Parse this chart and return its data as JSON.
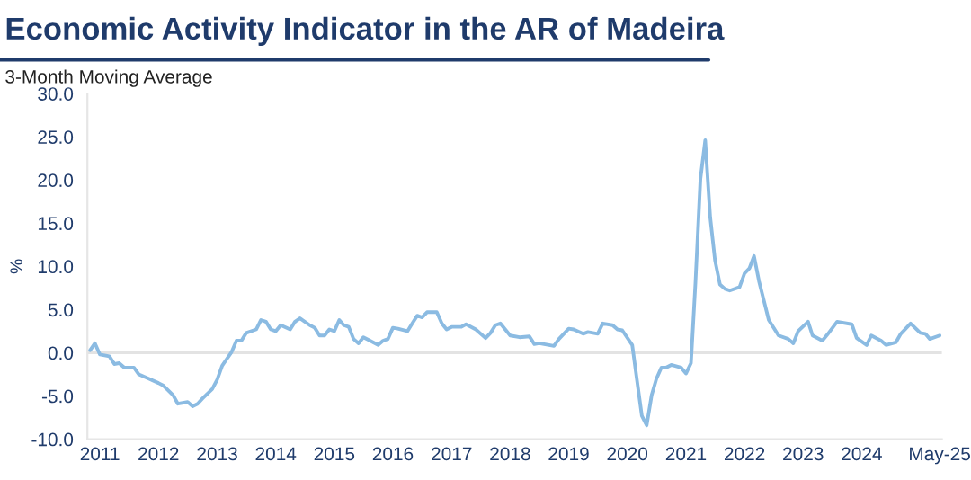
{
  "chart_data": {
    "type": "line",
    "title": "Economic Activity Indicator in the AR of Madeira",
    "subtitle": "3-Month Moving Average",
    "ylabel": "%",
    "x": [
      "2010-11",
      "2010-12",
      "2011-01",
      "2011-03",
      "2011-04",
      "2011-05",
      "2011-06",
      "2011-08",
      "2011-09",
      "2011-11",
      "2012-01",
      "2012-02",
      "2012-04",
      "2012-05",
      "2012-07",
      "2012-08",
      "2012-09",
      "2012-10",
      "2012-12",
      "2013-01",
      "2013-02",
      "2013-04",
      "2013-05",
      "2013-06",
      "2013-07",
      "2013-09",
      "2013-10",
      "2013-11",
      "2013-12",
      "2014-01",
      "2014-02",
      "2014-04",
      "2014-05",
      "2014-06",
      "2014-08",
      "2014-09",
      "2014-10",
      "2014-11",
      "2014-12",
      "2015-01",
      "2015-02",
      "2015-03",
      "2015-04",
      "2015-05",
      "2015-06",
      "2015-07",
      "2015-08",
      "2015-10",
      "2015-11",
      "2015-12",
      "2016-01",
      "2016-02",
      "2016-04",
      "2016-05",
      "2016-06",
      "2016-07",
      "2016-08",
      "2016-10",
      "2016-11",
      "2016-12",
      "2017-01",
      "2017-03",
      "2017-04",
      "2017-06",
      "2017-08",
      "2017-09",
      "2017-10",
      "2017-11",
      "2018-01",
      "2018-03",
      "2018-05",
      "2018-06",
      "2018-07",
      "2018-08",
      "2018-10",
      "2018-11",
      "2019-01",
      "2019-02",
      "2019-04",
      "2019-05",
      "2019-07",
      "2019-08",
      "2019-10",
      "2019-11",
      "2019-12",
      "2020-02",
      "2020-03",
      "2020-04",
      "2020-05",
      "2020-06",
      "2020-07",
      "2020-08",
      "2020-09",
      "2020-10",
      "2020-12",
      "2021-01",
      "2021-02",
      "2021-03",
      "2021-04",
      "2021-05",
      "2021-06",
      "2021-07",
      "2021-08",
      "2021-09",
      "2021-10",
      "2021-12",
      "2022-01",
      "2022-02",
      "2022-03",
      "2022-04",
      "2022-06",
      "2022-08",
      "2022-10",
      "2022-11",
      "2022-12",
      "2023-02",
      "2023-03",
      "2023-05",
      "2023-06",
      "2023-08",
      "2023-11",
      "2023-12",
      "2024-02",
      "2024-03",
      "2024-05",
      "2024-06",
      "2024-08",
      "2024-09",
      "2024-11",
      "2025-01",
      "2025-02",
      "2025-03",
      "2025-05"
    ],
    "series": [
      {
        "color": "#8bbbe2",
        "values": [
          0.3,
          1.1,
          -0.2,
          -0.4,
          -1.3,
          -1.2,
          -1.7,
          -1.7,
          -2.5,
          -3.0,
          -3.5,
          -3.8,
          -4.9,
          -5.9,
          -5.7,
          -6.2,
          -5.9,
          -5.3,
          -4.2,
          -3.1,
          -1.5,
          0.1,
          1.4,
          1.4,
          2.3,
          2.7,
          3.8,
          3.6,
          2.7,
          2.5,
          3.2,
          2.7,
          3.6,
          4.0,
          3.2,
          2.9,
          2.0,
          2.0,
          2.7,
          2.5,
          3.8,
          3.2,
          3.0,
          1.6,
          1.1,
          1.8,
          1.5,
          0.9,
          1.4,
          1.6,
          2.9,
          2.8,
          2.5,
          3.4,
          4.3,
          4.1,
          4.7,
          4.7,
          3.4,
          2.7,
          3.0,
          3.0,
          3.3,
          2.7,
          1.7,
          2.3,
          3.2,
          3.4,
          2.0,
          1.8,
          1.9,
          1.0,
          1.1,
          1.0,
          0.8,
          1.6,
          2.8,
          2.7,
          2.2,
          2.4,
          2.2,
          3.4,
          3.2,
          2.7,
          2.6,
          0.9,
          -3.1,
          -7.3,
          -8.4,
          -4.9,
          -3.0,
          -1.7,
          -1.7,
          -1.4,
          -1.7,
          -2.4,
          -1.2,
          8.1,
          20.1,
          24.6,
          15.7,
          10.7,
          7.9,
          7.4,
          7.2,
          7.6,
          9.2,
          9.8,
          11.2,
          8.3,
          3.8,
          2.0,
          1.6,
          1.1,
          2.5,
          3.6,
          2.0,
          1.4,
          2.1,
          3.6,
          3.3,
          1.7,
          0.9,
          2.0,
          1.4,
          0.9,
          1.2,
          2.2,
          3.4,
          2.3,
          2.2,
          1.6,
          2.0
        ]
      }
    ],
    "xlim": [
      "2010-10-15",
      "2025-05-15"
    ],
    "xticks": [
      {
        "value": "2011-01",
        "label": "2011"
      },
      {
        "value": "2012-01",
        "label": "2012"
      },
      {
        "value": "2013-01",
        "label": "2013"
      },
      {
        "value": "2014-01",
        "label": "2014"
      },
      {
        "value": "2015-01",
        "label": "2015"
      },
      {
        "value": "2016-01",
        "label": "2016"
      },
      {
        "value": "2017-01",
        "label": "2017"
      },
      {
        "value": "2018-01",
        "label": "2018"
      },
      {
        "value": "2019-01",
        "label": "2019"
      },
      {
        "value": "2020-01",
        "label": "2020"
      },
      {
        "value": "2021-01",
        "label": "2021"
      },
      {
        "value": "2022-01",
        "label": "2022"
      },
      {
        "value": "2023-01",
        "label": "2023"
      },
      {
        "value": "2024-01",
        "label": "2024"
      },
      {
        "value": "2025-05",
        "label": "May-25"
      }
    ],
    "ylim": [
      -10,
      30
    ],
    "yticks": [
      {
        "value": -10,
        "label": "-10.0"
      },
      {
        "value": -5,
        "label": "-5.0"
      },
      {
        "value": 0,
        "label": "0.0"
      },
      {
        "value": 5,
        "label": "5.0"
      },
      {
        "value": 10,
        "label": "10.0"
      },
      {
        "value": 15,
        "label": "15.0"
      },
      {
        "value": 20,
        "label": "20.0"
      },
      {
        "value": 25,
        "label": "25.0"
      },
      {
        "value": 30,
        "label": "30.0"
      }
    ],
    "ref_lines": [
      {
        "axis": "y",
        "value": 0,
        "color": "#e3e3e3"
      }
    ],
    "grid": false,
    "legend": false,
    "marker": "none",
    "line_style": "solid"
  }
}
